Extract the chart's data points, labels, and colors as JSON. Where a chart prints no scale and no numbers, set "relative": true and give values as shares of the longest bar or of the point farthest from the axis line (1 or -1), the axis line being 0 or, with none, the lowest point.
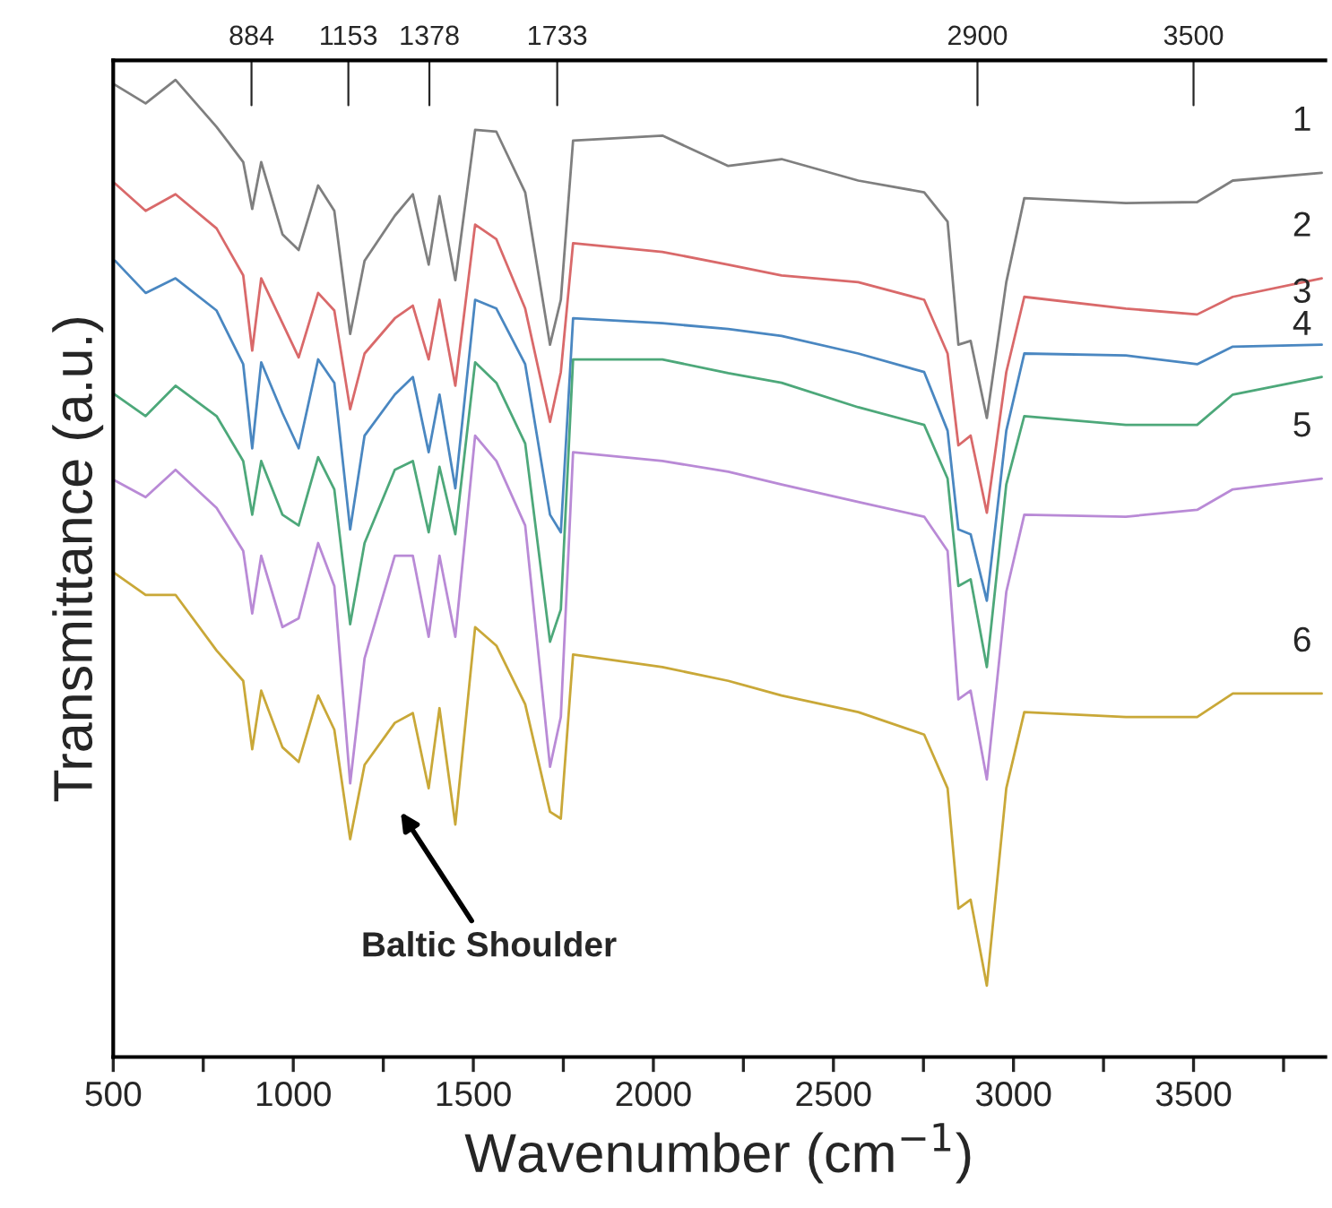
{
  "chart_data": {
    "type": "line",
    "relative": true,
    "xlabel": "Wavenumber (cm$^{−1}$)",
    "ylabel": "Transmittance (a.u.)",
    "xlim": [
      500,
      3866
    ],
    "xticks": [
      500,
      {
        "value": 750,
        "label": null
      },
      1000,
      {
        "value": 1250,
        "label": null
      },
      1500,
      {
        "value": 1750,
        "label": null
      },
      2000,
      {
        "value": 2250,
        "label": null
      },
      2500,
      {
        "value": 2750,
        "label": null
      },
      3000,
      {
        "value": 3250,
        "label": null
      },
      3500,
      {
        "value": 3750,
        "label": null
      }
    ],
    "ref_lines": [
      {
        "axis": "x",
        "value": 884,
        "label": "884"
      },
      {
        "axis": "x",
        "value": 1153,
        "label": "1153"
      },
      {
        "axis": "x",
        "value": 1378,
        "label": "1378"
      },
      {
        "axis": "x",
        "value": 1733,
        "label": "1733"
      },
      {
        "axis": "x",
        "value": 2900,
        "label": "2900"
      },
      {
        "axis": "x",
        "value": 3500,
        "label": "3500"
      }
    ],
    "x": [
      505,
      590,
      673,
      787,
      861,
      886,
      911,
      970,
      1015,
      1069,
      1114,
      1158,
      1198,
      1282,
      1332,
      1376,
      1406,
      1450,
      1505,
      1564,
      1644,
      1713,
      1743,
      1777,
      2025,
      2208,
      2356,
      2569,
      2752,
      2817,
      2847,
      2881,
      2926,
      2980,
      3030,
      3312,
      3510,
      3609,
      3856
    ],
    "grid": false,
    "marker": "none",
    "line_style": "solid",
    "series": [
      {
        "name": "1",
        "color": "#7f7f7f",
        "values": [
          0.995,
          0.976,
          1,
          0.952,
          0.916,
          0.868,
          0.916,
          0.842,
          0.826,
          0.892,
          0.866,
          0.74,
          0.815,
          0.861,
          0.883,
          0.811,
          0.881,
          0.795,
          0.949,
          0.947,
          0.885,
          0.729,
          0.775,
          0.938,
          0.943,
          0.912,
          0.919,
          0.897,
          0.885,
          0.855,
          0.729,
          0.733,
          0.654,
          0.793,
          0.879,
          0.874,
          0.875,
          0.897,
          0.905
        ]
      },
      {
        "name": "2",
        "color": "#d9696a",
        "values": [
          0.894,
          0.866,
          0.883,
          0.848,
          0.8,
          0.723,
          0.797,
          0.751,
          0.716,
          0.782,
          0.764,
          0.663,
          0.72,
          0.756,
          0.769,
          0.714,
          0.775,
          0.687,
          0.852,
          0.837,
          0.766,
          0.65,
          0.701,
          0.833,
          0.824,
          0.811,
          0.8,
          0.793,
          0.775,
          0.72,
          0.626,
          0.636,
          0.557,
          0.701,
          0.778,
          0.766,
          0.76,
          0.778,
          0.797
        ]
      },
      {
        "name": "3",
        "color": "#4a87c1",
        "values": [
          0.815,
          0.782,
          0.797,
          0.764,
          0.709,
          0.623,
          0.711,
          0.659,
          0.623,
          0.714,
          0.69,
          0.54,
          0.636,
          0.678,
          0.696,
          0.619,
          0.678,
          0.582,
          0.775,
          0.766,
          0.709,
          0.555,
          0.537,
          0.756,
          0.751,
          0.745,
          0.738,
          0.72,
          0.701,
          0.641,
          0.54,
          0.535,
          0.467,
          0.641,
          0.72,
          0.718,
          0.709,
          0.727,
          0.729
        ]
      },
      {
        "name": "4",
        "color": "#4da87a",
        "values": [
          0.678,
          0.656,
          0.687,
          0.656,
          0.61,
          0.555,
          0.61,
          0.555,
          0.544,
          0.614,
          0.581,
          0.443,
          0.526,
          0.601,
          0.61,
          0.537,
          0.604,
          0.535,
          0.711,
          0.69,
          0.628,
          0.425,
          0.458,
          0.714,
          0.714,
          0.7,
          0.69,
          0.665,
          0.647,
          0.592,
          0.482,
          0.489,
          0.399,
          0.586,
          0.656,
          0.647,
          0.647,
          0.678,
          0.696
        ]
      },
      {
        "name": "5",
        "color": "#b98ad6",
        "values": [
          0.59,
          0.573,
          0.601,
          0.562,
          0.518,
          0.454,
          0.513,
          0.44,
          0.449,
          0.526,
          0.482,
          0.28,
          0.408,
          0.513,
          0.513,
          0.43,
          0.513,
          0.43,
          0.636,
          0.61,
          0.544,
          0.297,
          0.348,
          0.619,
          0.61,
          0.599,
          0.586,
          0.568,
          0.553,
          0.518,
          0.366,
          0.375,
          0.284,
          0.476,
          0.555,
          0.553,
          0.56,
          0.581,
          0.592
        ]
      },
      {
        "name": "6",
        "color": "#c9a838",
        "values": [
          0.495,
          0.473,
          0.473,
          0.416,
          0.385,
          0.315,
          0.375,
          0.317,
          0.302,
          0.37,
          0.335,
          0.223,
          0.299,
          0.342,
          0.352,
          0.275,
          0.357,
          0.238,
          0.44,
          0.421,
          0.361,
          0.251,
          0.244,
          0.412,
          0.399,
          0.385,
          0.37,
          0.353,
          0.33,
          0.275,
          0.152,
          0.161,
          0.073,
          0.275,
          0.353,
          0.348,
          0.348,
          0.372,
          0.372
        ]
      }
    ],
    "annotations": [
      "Baltic Shoulder"
    ]
  }
}
